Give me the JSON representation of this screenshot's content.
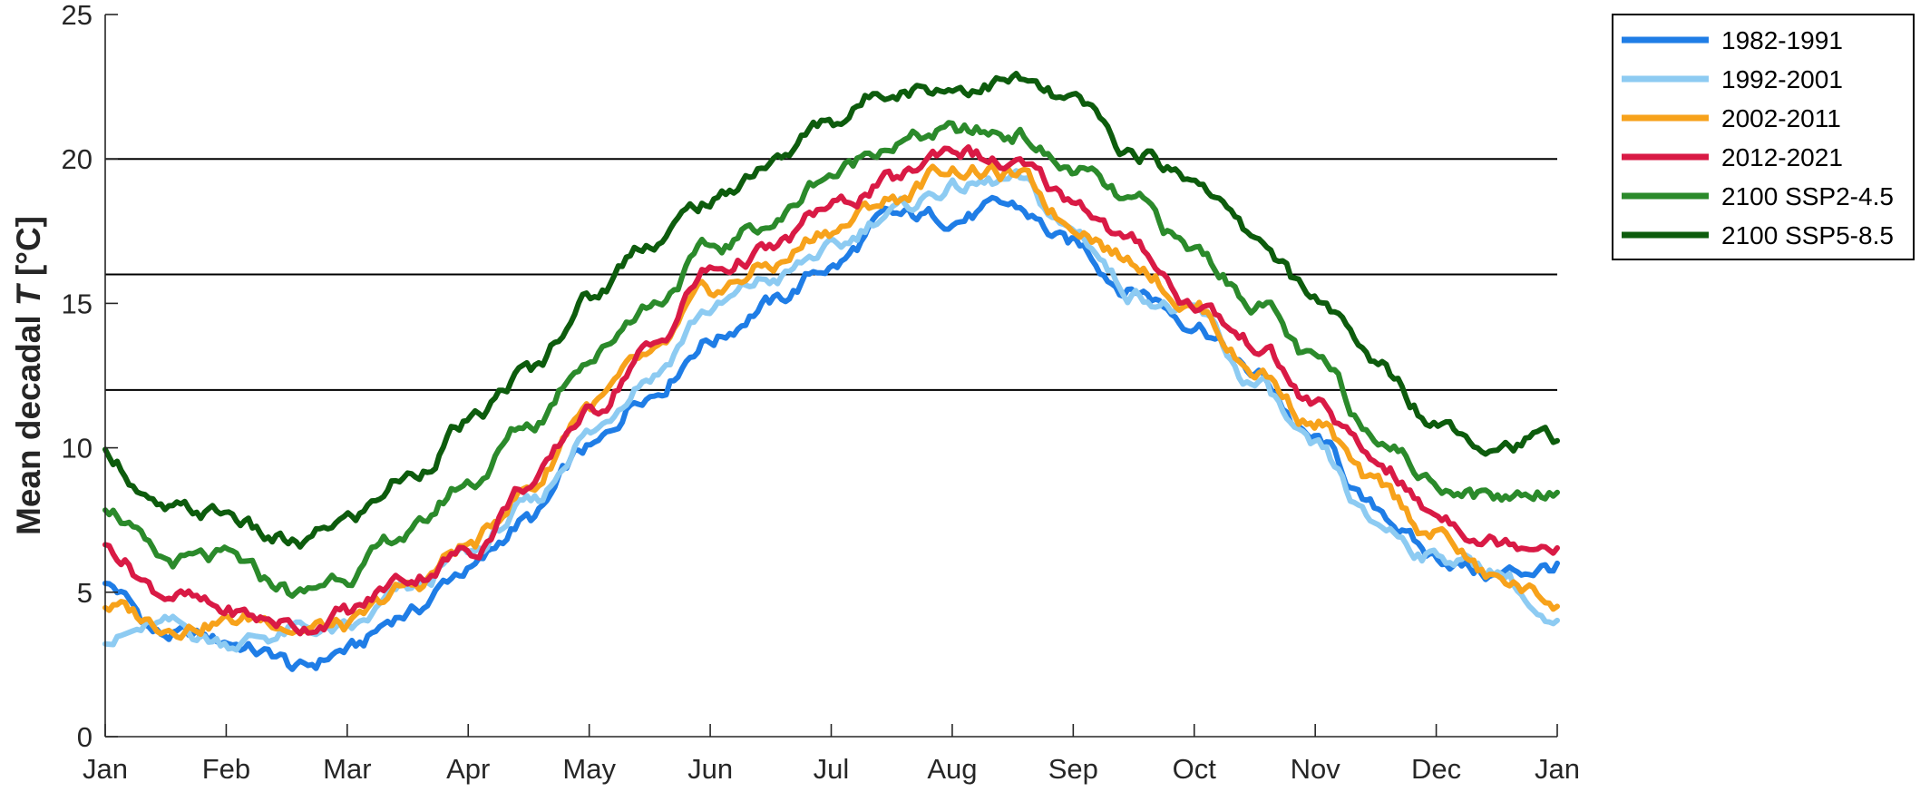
{
  "chart_data": {
    "type": "line",
    "title": "",
    "xlabel": "",
    "ylabel": "Mean decadal ",
    "ylabel_symbol": "T",
    "ylabel_unit": " [°C]",
    "xlim": [
      0,
      12
    ],
    "ylim": [
      0,
      25
    ],
    "xticks": [
      {
        "value": 0,
        "label": "Jan"
      },
      {
        "value": 1,
        "label": "Feb"
      },
      {
        "value": 2,
        "label": "Mar"
      },
      {
        "value": 3,
        "label": "Apr"
      },
      {
        "value": 4,
        "label": "May"
      },
      {
        "value": 5,
        "label": "Jun"
      },
      {
        "value": 6,
        "label": "Jul"
      },
      {
        "value": 7,
        "label": "Aug"
      },
      {
        "value": 8,
        "label": "Sep"
      },
      {
        "value": 9,
        "label": "Oct"
      },
      {
        "value": 10,
        "label": "Nov"
      },
      {
        "value": 11,
        "label": "Dec"
      },
      {
        "value": 12,
        "label": "Jan"
      }
    ],
    "yticks": [
      0,
      5,
      10,
      15,
      20,
      25
    ],
    "reference_lines": [
      12,
      16,
      20
    ],
    "grid": false,
    "legend_position": "top-right",
    "series": [
      {
        "name": "1982-1991",
        "color": "#1f7de6",
        "x": [
          0,
          0.5,
          1,
          1.4,
          1.6,
          2,
          2.5,
          3,
          3.5,
          4,
          4.5,
          5,
          5.5,
          6,
          6.5,
          7,
          7.5,
          8,
          8.5,
          9,
          9.5,
          10,
          10.5,
          11,
          11.5,
          12
        ],
        "y": [
          5.2,
          3.5,
          3.3,
          2.8,
          2.3,
          3.0,
          4.3,
          5.8,
          7.5,
          9.9,
          12.0,
          13.8,
          15.0,
          16.3,
          17.9,
          18.0,
          18.3,
          17.0,
          15.5,
          14.4,
          12.5,
          10.2,
          7.8,
          6.2,
          5.6,
          5.9
        ]
      },
      {
        "name": "1992-2001",
        "color": "#8dcbf2",
        "x": [
          0,
          0.5,
          1,
          1.4,
          1.6,
          2,
          2.5,
          3,
          3.5,
          4,
          4.5,
          5,
          5.5,
          6,
          6.5,
          7,
          7.5,
          8,
          8.5,
          9,
          9.5,
          10,
          10.5,
          11,
          11.5,
          12
        ],
        "y": [
          3.4,
          3.8,
          3.3,
          3.5,
          3.7,
          3.6,
          5.0,
          6.3,
          7.9,
          10.5,
          12.6,
          14.8,
          15.8,
          16.8,
          18.2,
          19.0,
          19.2,
          17.5,
          15.4,
          14.6,
          12.2,
          9.8,
          7.3,
          6.3,
          5.8,
          3.6
        ]
      },
      {
        "name": "2002-2011",
        "color": "#f7a21b",
        "x": [
          0,
          0.5,
          1,
          1.4,
          1.6,
          2,
          2.5,
          3,
          3.5,
          4,
          4.5,
          5,
          5.5,
          6,
          6.5,
          7,
          7.5,
          8,
          8.5,
          9,
          9.5,
          10,
          10.5,
          11,
          11.5,
          12
        ],
        "y": [
          4.5,
          3.9,
          4.0,
          4.1,
          3.8,
          3.8,
          5.1,
          6.6,
          8.6,
          11.5,
          13.0,
          15.3,
          16.3,
          17.6,
          18.6,
          19.7,
          19.4,
          17.8,
          16.5,
          14.9,
          12.7,
          10.9,
          8.6,
          7.0,
          5.4,
          4.7
        ]
      },
      {
        "name": "2012-2021",
        "color": "#d91a45",
        "x": [
          0,
          0.5,
          1,
          1.4,
          1.6,
          2,
          2.5,
          3,
          3.5,
          4,
          4.5,
          5,
          5.5,
          6,
          6.5,
          7,
          7.5,
          8,
          8.5,
          9,
          9.5,
          10,
          10.5,
          11,
          11.5,
          12
        ],
        "y": [
          6.5,
          5.0,
          4.3,
          4.0,
          3.8,
          4.3,
          5.5,
          6.4,
          8.7,
          11.2,
          13.4,
          16.1,
          16.8,
          18.3,
          19.2,
          20.4,
          19.7,
          18.6,
          17.0,
          15.0,
          13.6,
          11.5,
          9.5,
          7.7,
          6.8,
          6.8
        ]
      },
      {
        "name": "2100 SSP2-4.5",
        "color": "#2b8a2b",
        "x": [
          0,
          0.5,
          1,
          1.4,
          1.6,
          2,
          2.5,
          3,
          3.5,
          4,
          4.5,
          5,
          5.5,
          6,
          6.5,
          7,
          7.5,
          8,
          8.5,
          9,
          9.5,
          10,
          10.5,
          11,
          11.5,
          12
        ],
        "y": [
          8.0,
          6.0,
          6.1,
          5.3,
          4.9,
          5.7,
          7.0,
          8.8,
          10.8,
          13.2,
          15.0,
          16.8,
          17.8,
          19.5,
          20.6,
          20.9,
          20.9,
          19.6,
          18.4,
          16.8,
          15.1,
          12.9,
          10.6,
          8.8,
          8.3,
          8.6
        ]
      },
      {
        "name": "2100 SSP5-8.5",
        "color": "#0d5c0d",
        "x": [
          0,
          0.5,
          1,
          1.4,
          1.6,
          2,
          2.5,
          3,
          3.5,
          4,
          4.5,
          5,
          5.5,
          6,
          6.5,
          7,
          7.5,
          8,
          8.5,
          9,
          9.5,
          10,
          10.5,
          11,
          11.5,
          12
        ],
        "y": [
          9.8,
          7.7,
          7.7,
          6.8,
          6.6,
          7.5,
          9.0,
          10.8,
          12.6,
          15.2,
          17.2,
          18.5,
          19.9,
          21.3,
          22.5,
          22.5,
          22.7,
          21.9,
          20.2,
          19.4,
          17.3,
          15.2,
          12.9,
          11.0,
          10.2,
          10.3
        ]
      }
    ]
  }
}
